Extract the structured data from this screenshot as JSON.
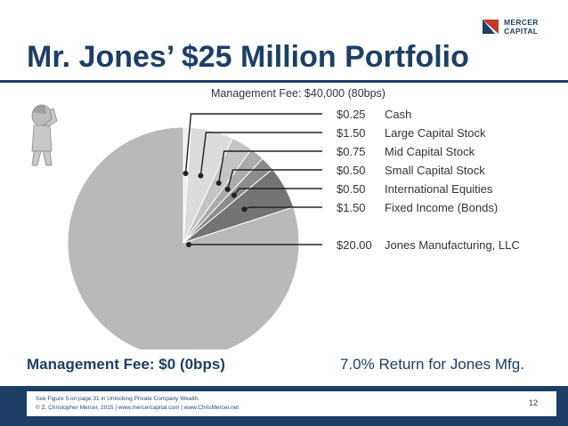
{
  "header": {
    "logo_line1": "MERCER",
    "logo_line2": "CAPITAL",
    "title": "Mr. Jones’ $25 Million Portfolio"
  },
  "callouts": {
    "management_fee_top": "Management Fee: $40,000 (80bps)",
    "management_fee_bottom": "Management Fee: $0 (0bps)",
    "return_note": "7.0% Return for Jones Mfg."
  },
  "footer": {
    "line1": "See Figure 5 on page 31 in Unlocking Private Company Wealth.",
    "line2": "© Z. Christopher Mercer, 2015 | www.mercercapital.com  |  www.ChrisMercer.net",
    "page_number": "12"
  },
  "colors": {
    "brand_navy": "#1d3f66",
    "logo_accent": "#c0392b"
  },
  "icons": [
    "worried-person-icon",
    "mercer-logo-icon"
  ],
  "chart_data": {
    "type": "pie",
    "title": "",
    "unit": "$M",
    "slices": [
      {
        "label": "Cash",
        "display_value": "$0.25",
        "value": 0.25,
        "color": "#f0f0f0"
      },
      {
        "label": "Large Capital Stock",
        "display_value": "$1.50",
        "value": 1.5,
        "color": "#dcdcdc"
      },
      {
        "label": "Mid Capital Stock",
        "display_value": "$0.75",
        "value": 0.75,
        "color": "#c4c4c4"
      },
      {
        "label": "Small Capital Stock",
        "display_value": "$0.50",
        "value": 0.5,
        "color": "#ababab"
      },
      {
        "label": "International Equities",
        "display_value": "$0.50",
        "value": 0.5,
        "color": "#8c8c8c"
      },
      {
        "label": "Fixed Income (Bonds)",
        "display_value": "$1.50",
        "value": 1.5,
        "color": "#747474"
      },
      {
        "label": "Jones Manufacturing, LLC",
        "display_value": "$20.00",
        "value": 20.0,
        "color": "#b9b9b9"
      }
    ],
    "legend_position": "right"
  }
}
